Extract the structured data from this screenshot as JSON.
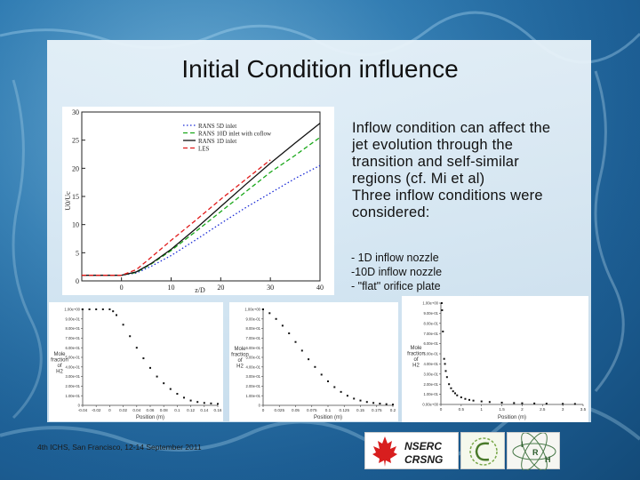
{
  "slide": {
    "title": "Initial Condition influence",
    "body_lines": [
      "Inflow condition can affect the",
      "jet evolution through the",
      "transition and self-similar",
      "regions (cf. Mi et al)",
      "Three inflow conditions were",
      "considered:"
    ],
    "nozzles": [
      "- 1D inflow nozzle",
      "-10D inflow nozzle",
      "- \"flat\" orifice plate"
    ],
    "footer": "4th ICHS, San Francisco, 12-14 September 2011",
    "logos": {
      "nserc_top": "NSERC",
      "nserc_bottom": "CRSNG",
      "irh_letters": [
        "I",
        "R",
        "H"
      ]
    }
  },
  "colors": {
    "rans5d": "#1a2bd6",
    "rans10d": "#1aa81a",
    "rans1d": "#111111",
    "les": "#e01a1a",
    "panel": "#e6f1f8"
  },
  "chart_data": [
    {
      "type": "line",
      "xlabel": "z/D",
      "ylabel": "U0/Uc",
      "xlim": [
        -8,
        40
      ],
      "ylim": [
        0,
        30
      ],
      "xticks": [
        "0",
        "10",
        "20",
        "30",
        "40"
      ],
      "yticks": [
        "0",
        "5",
        "10",
        "15",
        "20",
        "25",
        "30"
      ],
      "legend_position": "top-right",
      "series": [
        {
          "name": "RANS 5D inlet",
          "color": "#1a2bd6",
          "style": "dotted",
          "x": [
            -8,
            -2,
            0,
            3,
            6,
            10,
            15,
            20,
            25,
            30,
            35,
            40
          ],
          "y": [
            1,
            1,
            1,
            1.4,
            2.6,
            4.5,
            7.3,
            10.2,
            13,
            15.6,
            18.2,
            20.5
          ]
        },
        {
          "name": "RANS 10D inlet with coflow",
          "color": "#1aa81a",
          "style": "dashed",
          "x": [
            -8,
            -2,
            0,
            3,
            6,
            10,
            15,
            20,
            25,
            30,
            35,
            40
          ],
          "y": [
            1,
            1,
            1,
            1.5,
            3,
            5.4,
            8.8,
            12.3,
            15.8,
            19.3,
            22.3,
            25.5
          ]
        },
        {
          "name": "RANS 1D inlet",
          "color": "#111111",
          "style": "solid",
          "x": [
            -8,
            -2,
            0,
            3,
            6,
            10,
            15,
            20,
            25,
            30,
            35,
            40
          ],
          "y": [
            1,
            1,
            1,
            1.6,
            3.1,
            5.6,
            9.3,
            13.2,
            17.1,
            20.9,
            24.5,
            28
          ]
        },
        {
          "name": "LES",
          "color": "#e01a1a",
          "style": "dashed",
          "x": [
            -8,
            -2,
            0,
            3,
            6,
            10,
            15,
            20,
            25,
            30
          ],
          "y": [
            1,
            1,
            1,
            2,
            4.2,
            7.2,
            10.8,
            14.5,
            18,
            21.5
          ]
        }
      ]
    },
    {
      "type": "scatter",
      "xlabel": "Position (m)",
      "ylabel_lines": [
        "Mole",
        "fraction",
        "of",
        "H2"
      ],
      "xlim": [
        -0.04,
        0.16
      ],
      "ylim": [
        0,
        1
      ],
      "xticks": [
        "-0.04",
        "-0.02",
        "0",
        "0.02",
        "0.04",
        "0.06",
        "0.08",
        "0.1",
        "0.12",
        "0.14",
        "0.16"
      ],
      "yticks": [
        "0",
        "1.00e-01",
        "2.00e-01",
        "3.00e-01",
        "4.00e-01",
        "5.00e-01",
        "6.00e-01",
        "7.00e-01",
        "8.00e-01",
        "9.00e-01",
        "1.00e+00"
      ],
      "series": [
        {
          "x": [
            -0.04,
            -0.03,
            -0.02,
            -0.01,
            0,
            0.005,
            0.01,
            0.02,
            0.03,
            0.04,
            0.05,
            0.06,
            0.07,
            0.08,
            0.09,
            0.1,
            0.11,
            0.12,
            0.13,
            0.14,
            0.15,
            0.16
          ],
          "y": [
            1,
            1,
            1,
            1,
            1,
            0.98,
            0.94,
            0.84,
            0.72,
            0.6,
            0.49,
            0.39,
            0.3,
            0.23,
            0.17,
            0.12,
            0.08,
            0.05,
            0.035,
            0.025,
            0.02,
            0.015
          ]
        }
      ]
    },
    {
      "type": "scatter",
      "xlabel": "Position (m)",
      "ylabel_lines": [
        "Mole",
        "fraction",
        "of",
        "H2"
      ],
      "xlim": [
        0,
        0.2
      ],
      "ylim": [
        0,
        1
      ],
      "xticks": [
        "0",
        "0.025",
        "0.05",
        "0.075",
        "0.1",
        "0.125",
        "0.15",
        "0.175",
        "0.2"
      ],
      "yticks": [
        "0",
        "1.00e-01",
        "2.00e-01",
        "3.00e-01",
        "4.00e-01",
        "5.00e-01",
        "6.00e-01",
        "7.00e-01",
        "8.00e-01",
        "9.00e-01",
        "1.00e+00"
      ],
      "series": [
        {
          "x": [
            0,
            0.01,
            0.02,
            0.03,
            0.04,
            0.05,
            0.06,
            0.07,
            0.08,
            0.09,
            0.1,
            0.11,
            0.12,
            0.13,
            0.14,
            0.15,
            0.16,
            0.17,
            0.18,
            0.19,
            0.2
          ],
          "y": [
            1,
            0.96,
            0.9,
            0.83,
            0.75,
            0.66,
            0.57,
            0.48,
            0.4,
            0.32,
            0.25,
            0.19,
            0.14,
            0.1,
            0.07,
            0.05,
            0.035,
            0.025,
            0.018,
            0.012,
            0.008
          ]
        }
      ]
    },
    {
      "type": "scatter",
      "xlabel": "Position (m)",
      "ylabel_lines": [
        "Mole",
        "fraction",
        "of",
        "H2"
      ],
      "xlim": [
        0,
        3.5
      ],
      "ylim": [
        0,
        1
      ],
      "xticks": [
        "0",
        "0.5",
        "1",
        "1.5",
        "2",
        "2.5",
        "3",
        "3.5"
      ],
      "yticks": [
        "0.00e+00",
        "1.00e-01",
        "2.00e-01",
        "3.00e-01",
        "4.00e-01",
        "5.00e-01",
        "6.00e-01",
        "7.00e-01",
        "8.00e-01",
        "9.00e-01",
        "1.00e+00"
      ],
      "series": [
        {
          "x": [
            0.02,
            0.03,
            0.05,
            0.08,
            0.1,
            0.12,
            0.15,
            0.2,
            0.25,
            0.3,
            0.35,
            0.4,
            0.5,
            0.6,
            0.7,
            0.8,
            1,
            1.2,
            1.5,
            1.8,
            2,
            2.3,
            2.6,
            3,
            3.3
          ],
          "y": [
            1,
            0.93,
            0.72,
            0.45,
            0.4,
            0.33,
            0.27,
            0.2,
            0.16,
            0.13,
            0.11,
            0.09,
            0.07,
            0.055,
            0.045,
            0.038,
            0.03,
            0.024,
            0.018,
            0.014,
            0.012,
            0.01,
            0.008,
            0.006,
            0.005
          ]
        }
      ]
    }
  ]
}
